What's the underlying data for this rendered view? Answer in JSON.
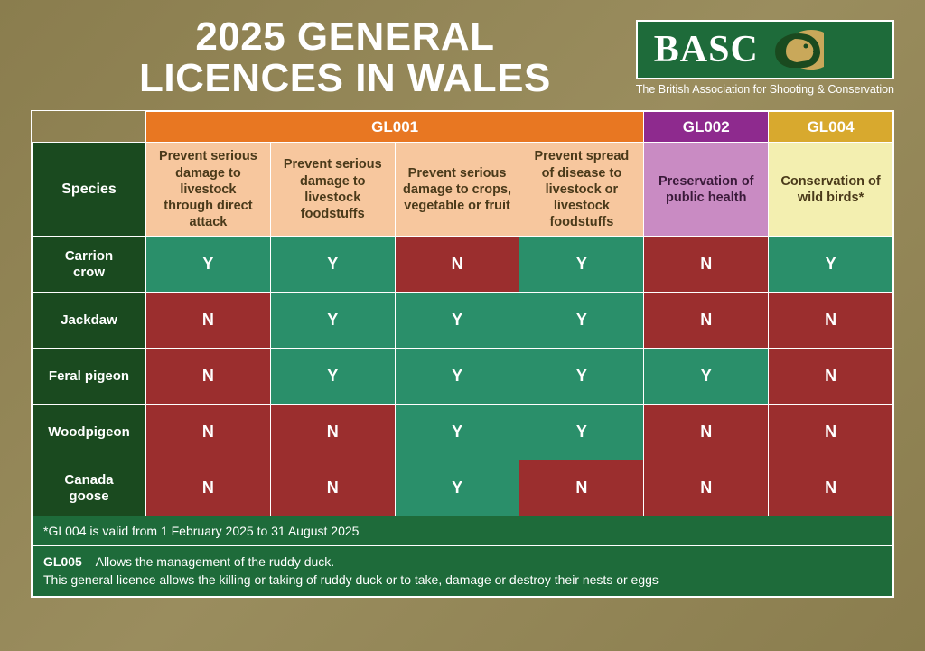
{
  "title": "2025 GENERAL\nLICENCES IN WALES",
  "logo": {
    "text": "BASC",
    "subtitle": "The British Association for Shooting & Conservation"
  },
  "colors": {
    "dark_green": "#1a4a1f",
    "mid_green": "#1e6b3a",
    "yes_green": "#2a8f6a",
    "no_red": "#9b2e2e",
    "gl001_header": "#e87722",
    "gl001_purpose": "#f7c79e",
    "gl001_purpose_text": "#4a3a1a",
    "gl002_header": "#8e2a8e",
    "gl002_purpose": "#c98bc3",
    "gl002_purpose_text": "#3a1a3a",
    "gl004_header": "#d8a92e",
    "gl004_purpose": "#f3efb0",
    "gl004_purpose_text": "#4a3a1a"
  },
  "licence_groups": [
    {
      "code": "GL001",
      "span": 4,
      "header_color": "#e87722",
      "purpose_bg": "#f7c79e",
      "purpose_text": "#4a3a1a"
    },
    {
      "code": "GL002",
      "span": 1,
      "header_color": "#8e2a8e",
      "purpose_bg": "#c98bc3",
      "purpose_text": "#3a1a3a"
    },
    {
      "code": "GL004",
      "span": 1,
      "header_color": "#d8a92e",
      "purpose_bg": "#f3efb0",
      "purpose_text": "#4a3a1a"
    }
  ],
  "species_header": "Species",
  "purposes": [
    "Prevent serious damage to livestock through direct attack",
    "Prevent serious damage to livestock foodstuffs",
    "Prevent serious damage to crops, vegetable or fruit",
    "Prevent spread of disease to livestock or livestock foodstuffs",
    "Preservation of public health",
    "Conservation of wild birds*"
  ],
  "species": [
    {
      "name": "Carrion\ncrow",
      "values": [
        "Y",
        "Y",
        "N",
        "Y",
        "N",
        "Y"
      ]
    },
    {
      "name": "Jackdaw",
      "values": [
        "N",
        "Y",
        "Y",
        "Y",
        "N",
        "N"
      ]
    },
    {
      "name": "Feral pigeon",
      "values": [
        "N",
        "Y",
        "Y",
        "Y",
        "Y",
        "N"
      ]
    },
    {
      "name": "Woodpigeon",
      "values": [
        "N",
        "N",
        "Y",
        "Y",
        "N",
        "N"
      ]
    },
    {
      "name": "Canada\ngoose",
      "values": [
        "N",
        "N",
        "Y",
        "N",
        "N",
        "N"
      ]
    }
  ],
  "footnote1": "*GL004 is valid from 1 February 2025 to 31 August 2025",
  "footnote2_bold": "GL005",
  "footnote2_rest": " – Allows the management of the ruddy duck.\nThis general licence allows the killing or taking of ruddy duck or to take, damage or destroy their nests or eggs"
}
